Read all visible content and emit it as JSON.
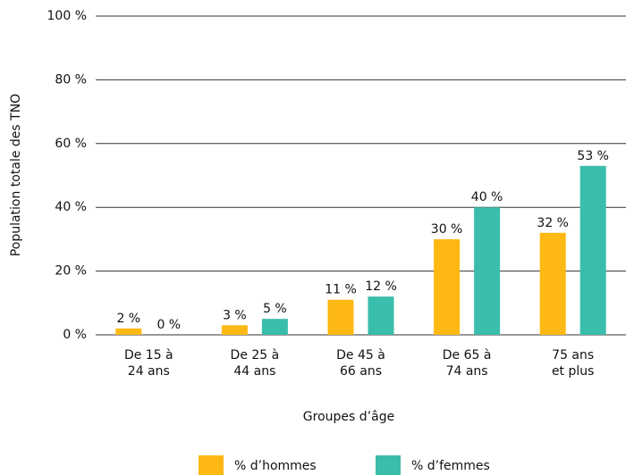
{
  "chart_data": {
    "type": "bar",
    "y_label": "Population totale des TNO",
    "x_label": "Groupes d’âge",
    "categories": [
      "De 15 à\n24 ans",
      "De 25 à\n44 ans",
      "De 45 à\n66 ans",
      "De 65 à\n74 ans",
      "75 ans\net plus"
    ],
    "series": [
      {
        "name": "% d’hommes",
        "color": "#FDB813",
        "values": [
          2,
          3,
          11,
          30,
          32
        ],
        "value_labels": [
          "2 %",
          "3 %",
          "11 %",
          "30 %",
          "32 %"
        ]
      },
      {
        "name": "% d’femmes",
        "color": "#3BBDAB",
        "values": [
          0,
          5,
          12,
          40,
          53
        ],
        "value_labels": [
          "0 %",
          "5 %",
          "12 %",
          "40 %",
          "53 %"
        ]
      }
    ],
    "ylim": [
      0,
      100
    ],
    "yticks": [
      {
        "value": 0,
        "label": "0 %"
      },
      {
        "value": 20,
        "label": "20 %"
      },
      {
        "value": 40,
        "label": "40 %"
      },
      {
        "value": 60,
        "label": "60 %"
      },
      {
        "value": 80,
        "label": "80 %"
      },
      {
        "value": 100,
        "label": "100 %"
      }
    ],
    "grid": true,
    "legend": "bottom"
  }
}
